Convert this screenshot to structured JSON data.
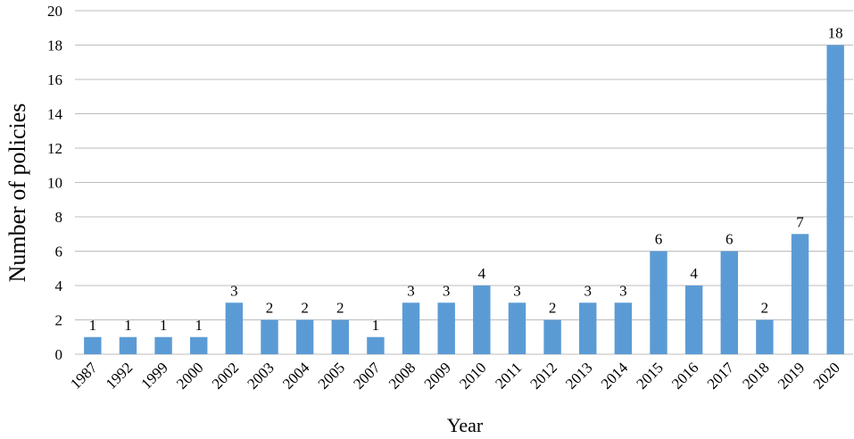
{
  "chart_data": {
    "type": "bar",
    "categories": [
      "1987",
      "1992",
      "1999",
      "2000",
      "2002",
      "2003",
      "2004",
      "2005",
      "2007",
      "2008",
      "2009",
      "2010",
      "2011",
      "2012",
      "2013",
      "2014",
      "2015",
      "2016",
      "2017",
      "2018",
      "2019",
      "2020"
    ],
    "values": [
      1,
      1,
      1,
      1,
      3,
      2,
      2,
      2,
      1,
      3,
      3,
      4,
      3,
      2,
      3,
      3,
      6,
      4,
      6,
      2,
      7,
      18
    ],
    "title": "",
    "xlabel": "Year",
    "ylabel": "Number of policies",
    "ylim": [
      0,
      20
    ],
    "yticks": [
      0,
      2,
      4,
      6,
      8,
      10,
      12,
      14,
      16,
      18,
      20
    ],
    "grid": true,
    "bar_color": "#5b9bd5",
    "data_labels": true
  }
}
